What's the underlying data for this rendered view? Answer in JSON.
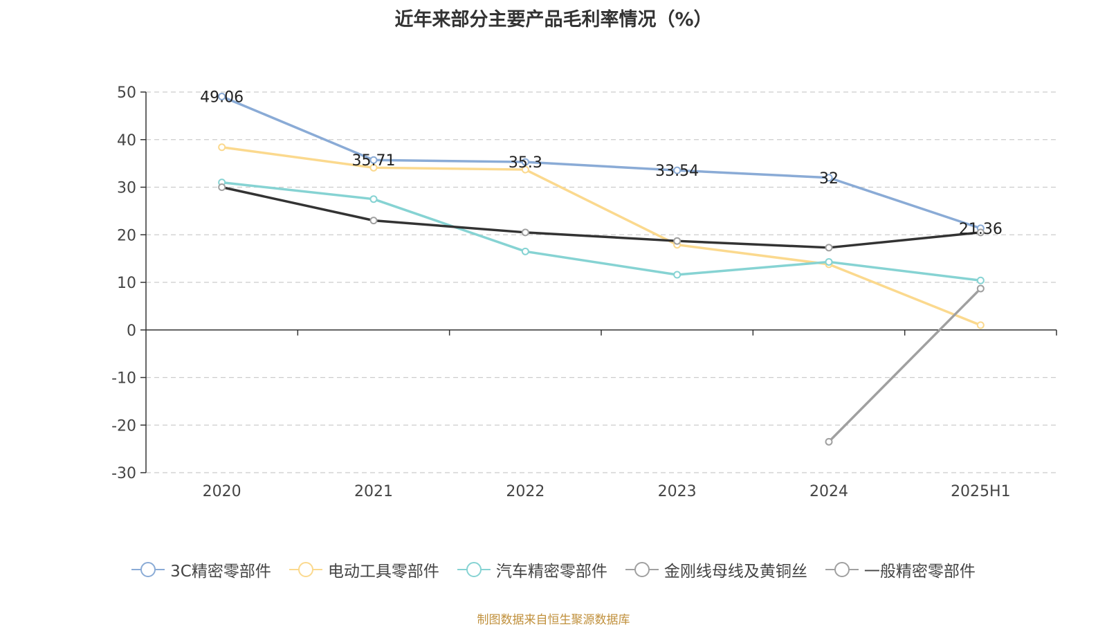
{
  "source": "制图数据来自恒生聚源数据库",
  "colors": {
    "axis": "#333333",
    "grid": "#cccccc",
    "tick_text": "#444444",
    "label_text": "#222222"
  },
  "chart_data": {
    "type": "line",
    "title": "近年来部分主要产品毛利率情况（%）",
    "xlabel": "",
    "ylabel": "",
    "categories": [
      "2020",
      "2021",
      "2022",
      "2023",
      "2024",
      "2025H1"
    ],
    "ylim": [
      -30,
      50
    ],
    "yticks": [
      50,
      40,
      30,
      20,
      10,
      0,
      -10,
      -20,
      -30
    ],
    "grid": true,
    "legend_position": "bottom",
    "series": [
      {
        "name": "3C精密零部件",
        "color": "#8aabd6",
        "values": [
          49.06,
          35.71,
          35.3,
          33.54,
          32,
          21.36
        ],
        "labels": [
          "49.06",
          "35.71",
          "35.3",
          "33.54",
          "32",
          "21.36"
        ]
      },
      {
        "name": "电动工具零部件",
        "color": "#fbd98e",
        "values": [
          38.4,
          34.1,
          33.7,
          17.9,
          13.8,
          1.0
        ],
        "labels": []
      },
      {
        "name": "汽车精密零部件",
        "color": "#86d3d3",
        "values": [
          31.0,
          27.5,
          16.5,
          11.6,
          14.3,
          10.4
        ],
        "labels": []
      },
      {
        "name": "金刚线母线及黄铜丝",
        "color": "#a0a0a0",
        "values": [
          null,
          null,
          null,
          null,
          -23.5,
          8.7
        ],
        "labels": []
      },
      {
        "name": "一般精密零部件",
        "color": "#333333",
        "legend_color": "#a0a0a0",
        "values": [
          30.0,
          23.0,
          20.5,
          18.7,
          17.3,
          20.5
        ],
        "labels": []
      }
    ]
  }
}
